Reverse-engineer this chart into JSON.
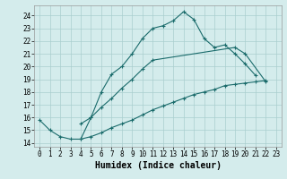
{
  "xlabel": "Humidex (Indice chaleur)",
  "background_color": "#d4ecec",
  "grid_color": "#aacece",
  "line_color": "#1a6b6b",
  "xlim": [
    -0.5,
    23.5
  ],
  "ylim": [
    13.7,
    24.8
  ],
  "yticks": [
    14,
    15,
    16,
    17,
    18,
    19,
    20,
    21,
    22,
    23,
    24
  ],
  "xticks": [
    0,
    1,
    2,
    3,
    4,
    5,
    6,
    7,
    8,
    9,
    10,
    11,
    12,
    13,
    14,
    15,
    16,
    17,
    18,
    19,
    20,
    21,
    22,
    23
  ],
  "line1_x": [
    0,
    1,
    2,
    3,
    4,
    5,
    6,
    7,
    8,
    9,
    10,
    11,
    12,
    13,
    14,
    15,
    16,
    17,
    18,
    19,
    20,
    21
  ],
  "line1_y": [
    15.8,
    15.0,
    14.5,
    14.3,
    14.3,
    16.0,
    18.0,
    19.4,
    20.0,
    21.0,
    22.2,
    23.0,
    23.2,
    23.6,
    24.3,
    23.7,
    22.2,
    21.5,
    21.7,
    21.0,
    20.2,
    19.3
  ],
  "line2_x": [
    4,
    5,
    6,
    7,
    8,
    9,
    10,
    11,
    19,
    20,
    22
  ],
  "line2_y": [
    15.5,
    16.0,
    16.8,
    17.5,
    18.3,
    19.0,
    19.8,
    20.5,
    21.5,
    21.0,
    18.8
  ],
  "line3_x": [
    4,
    5,
    6,
    7,
    8,
    9,
    10,
    11,
    12,
    13,
    14,
    15,
    16,
    17,
    18,
    19,
    20,
    21,
    22
  ],
  "line3_y": [
    14.3,
    14.5,
    14.8,
    15.2,
    15.5,
    15.8,
    16.2,
    16.6,
    16.9,
    17.2,
    17.5,
    17.8,
    18.0,
    18.2,
    18.5,
    18.6,
    18.7,
    18.8,
    18.9
  ],
  "marker": "+",
  "markersize": 3,
  "linewidth": 0.8,
  "xlabel_fontsize": 7,
  "tick_fontsize": 5.5
}
